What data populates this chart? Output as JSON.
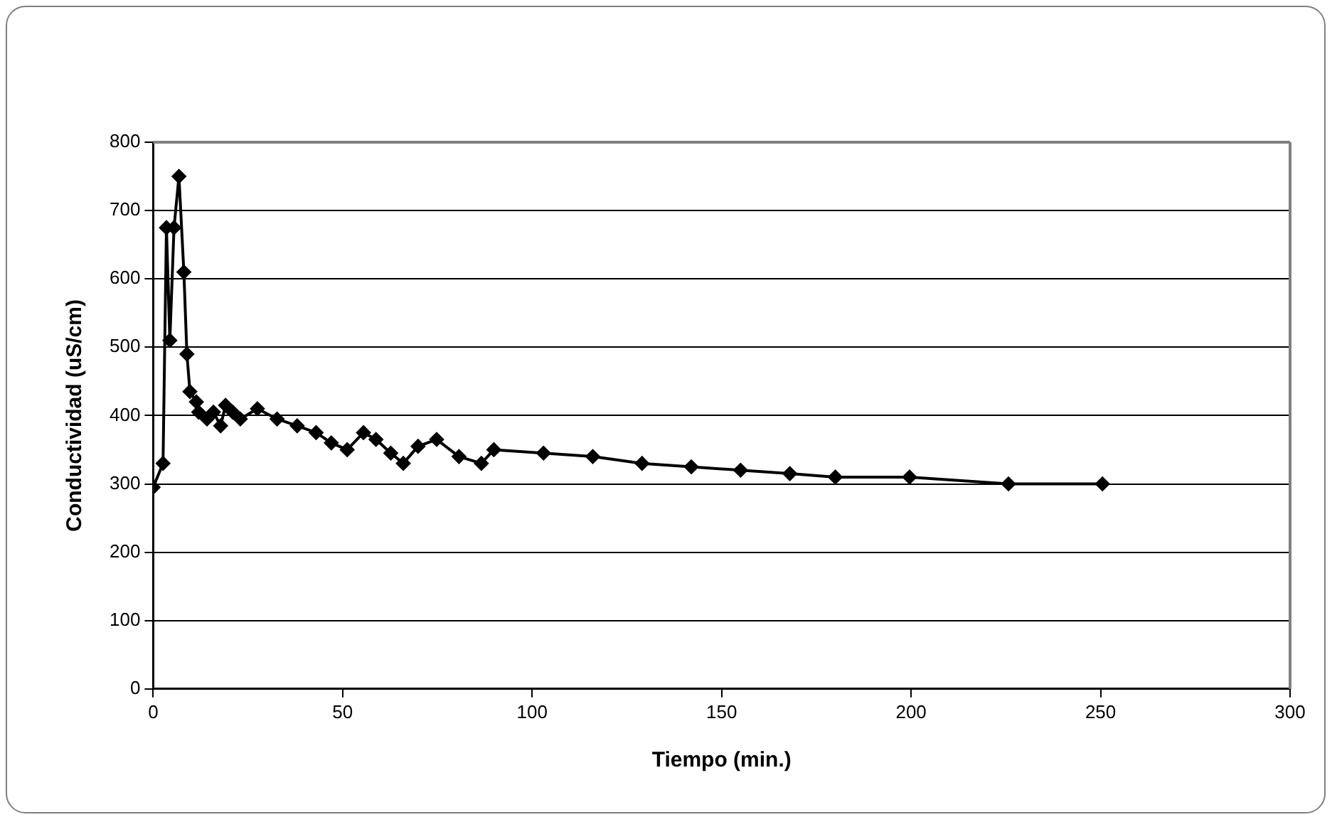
{
  "chart_data": {
    "type": "line",
    "xlabel": "Tiempo (min.)",
    "ylabel": "Conductividad (uS/cm)",
    "xlim": [
      0,
      300
    ],
    "xticks": [
      0,
      50,
      100,
      150,
      200,
      250,
      300
    ],
    "ylim": [
      0,
      800
    ],
    "yticks": [
      0,
      100,
      200,
      300,
      400,
      500,
      600,
      700,
      800
    ],
    "grid": "y",
    "legend": false,
    "marker": "diamond",
    "line_style": "solid",
    "series": [
      {
        "color": "#000000",
        "x": [
          0,
          2.6,
          3.5,
          4.4,
          5.5,
          6.8,
          8.1,
          8.9,
          9.7,
          11.4,
          12,
          14.2,
          15.9,
          17.8,
          19.1,
          21,
          23,
          27.5,
          32.7,
          38,
          43,
          47,
          51.2,
          55.5,
          58.8,
          62.7,
          66,
          69.9,
          74.8,
          80.7,
          86.6,
          89.9,
          103,
          116,
          129,
          142,
          155,
          168,
          180,
          199.6,
          225.7,
          250.5
        ],
        "values": [
          295,
          330,
          675,
          510,
          675,
          750,
          610,
          490,
          435,
          420,
          405,
          395,
          405,
          385,
          415,
          405,
          395,
          410,
          395,
          385,
          375,
          360,
          350,
          375,
          365,
          345,
          330,
          355,
          365,
          340,
          330,
          350,
          345,
          340,
          330,
          325,
          320,
          315,
          310,
          310,
          300,
          300
        ]
      }
    ]
  }
}
